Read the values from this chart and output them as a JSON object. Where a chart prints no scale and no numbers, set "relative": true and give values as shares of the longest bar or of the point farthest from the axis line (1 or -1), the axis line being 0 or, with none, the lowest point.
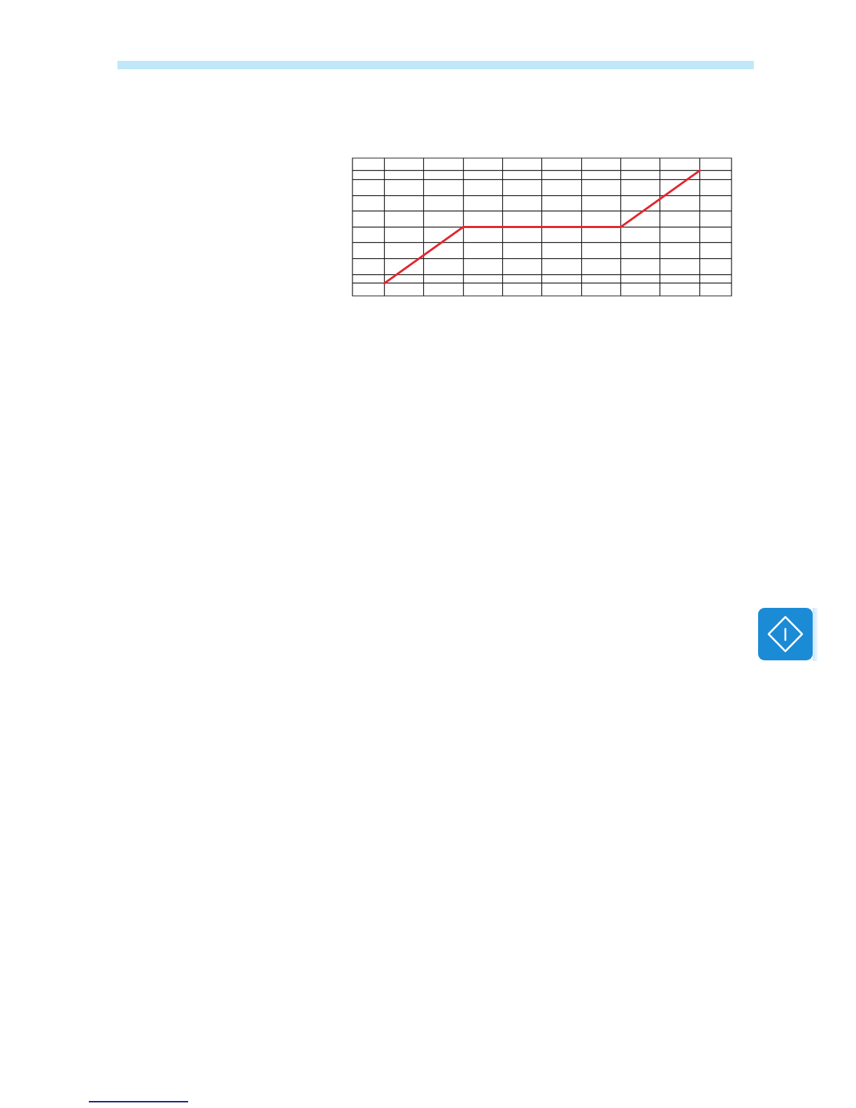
{
  "chart_data": {
    "type": "line",
    "relative": true,
    "categories": [
      null,
      null,
      null,
      null,
      null,
      null,
      null,
      null,
      null
    ],
    "values": [
      0,
      0.25,
      0.5,
      0.5,
      0.5,
      0.5,
      0.5,
      0.75,
      1
    ],
    "color": "#e3262e",
    "grid": true
  }
}
